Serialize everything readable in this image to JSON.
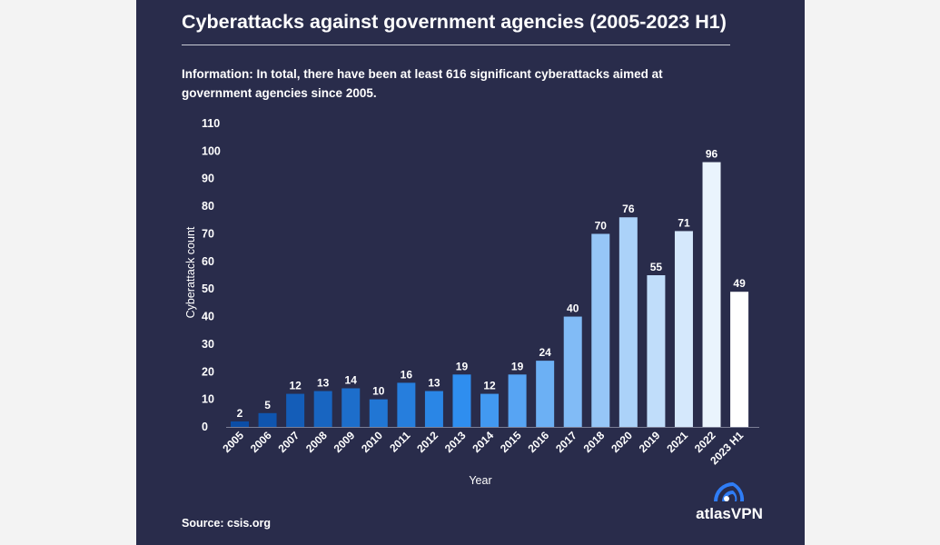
{
  "title": "Cyberattacks against government agencies (2005-2023 H1)",
  "information": "Information: In total, there have been at least 616 significant cyberattacks aimed at government agencies since 2005.",
  "source": "Source: csis.org",
  "logo_text": "atlasVPN",
  "colors": {
    "background": "#292c4b",
    "bar_start": "#0b4da6",
    "bar_mid": "#2f8ff0",
    "bar_end": "#ffffff",
    "text": "#ffffff"
  },
  "chart_data": {
    "type": "bar",
    "title": "",
    "xlabel": "Year",
    "ylabel": "Cyberattack count",
    "ylim": [
      0,
      110
    ],
    "yticks": [
      0,
      10,
      20,
      30,
      40,
      50,
      60,
      70,
      80,
      90,
      100,
      110
    ],
    "grid": false,
    "categories": [
      "2005",
      "2006",
      "2007",
      "2008",
      "2009",
      "2010",
      "2011",
      "2012",
      "2013",
      "2014",
      "2015",
      "2016",
      "2017",
      "2018",
      "2020",
      "2019",
      "2021",
      "2022",
      "2023 H1"
    ],
    "values": [
      2,
      5,
      12,
      13,
      14,
      10,
      16,
      13,
      19,
      12,
      19,
      24,
      40,
      70,
      76,
      55,
      71,
      96,
      49
    ]
  }
}
